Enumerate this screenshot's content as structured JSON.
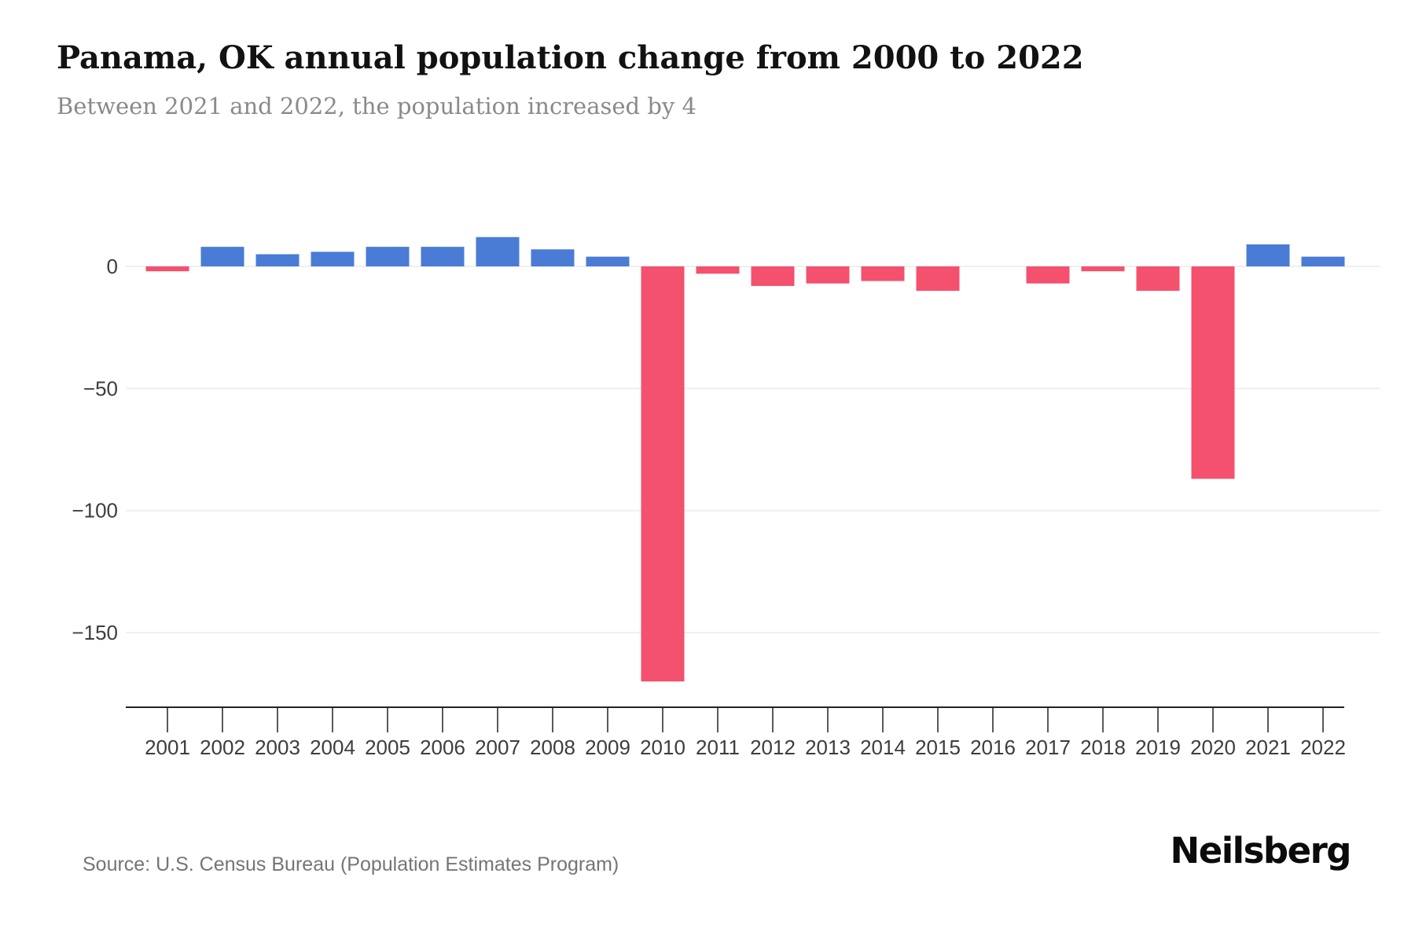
{
  "header": {
    "title": "Panama, OK annual population change from 2000 to 2022",
    "subtitle": "Between 2021 and 2022, the population increased by 4"
  },
  "footer": {
    "source": "Source: U.S. Census Bureau (Population Estimates Program)",
    "logo": "Neilsberg"
  },
  "chart_data": {
    "type": "bar",
    "title": "Panama, OK annual population change from 2000 to 2022",
    "subtitle": "Between 2021 and 2022, the population increased by 4",
    "categories": [
      "2001",
      "2002",
      "2003",
      "2004",
      "2005",
      "2006",
      "2007",
      "2008",
      "2009",
      "2010",
      "2011",
      "2012",
      "2013",
      "2014",
      "2015",
      "2016",
      "2017",
      "2018",
      "2019",
      "2020",
      "2021",
      "2022"
    ],
    "values": [
      -2,
      8,
      5,
      6,
      8,
      8,
      12,
      7,
      4,
      -170,
      -3,
      -8,
      -7,
      -6,
      -10,
      0,
      -7,
      -2,
      -10,
      -87,
      9,
      4
    ],
    "xlabel": "",
    "ylabel": "",
    "ylim": [
      -175,
      15
    ],
    "yticks": [
      0,
      -50,
      -100,
      -150
    ],
    "grid": "horizontal",
    "legend": "none",
    "colors": {
      "positive": "#4a7cd6",
      "negative": "#f4516e",
      "gridline": "#efefef",
      "axis_line": "#222222",
      "tick_label": "#3d3d3d"
    }
  }
}
